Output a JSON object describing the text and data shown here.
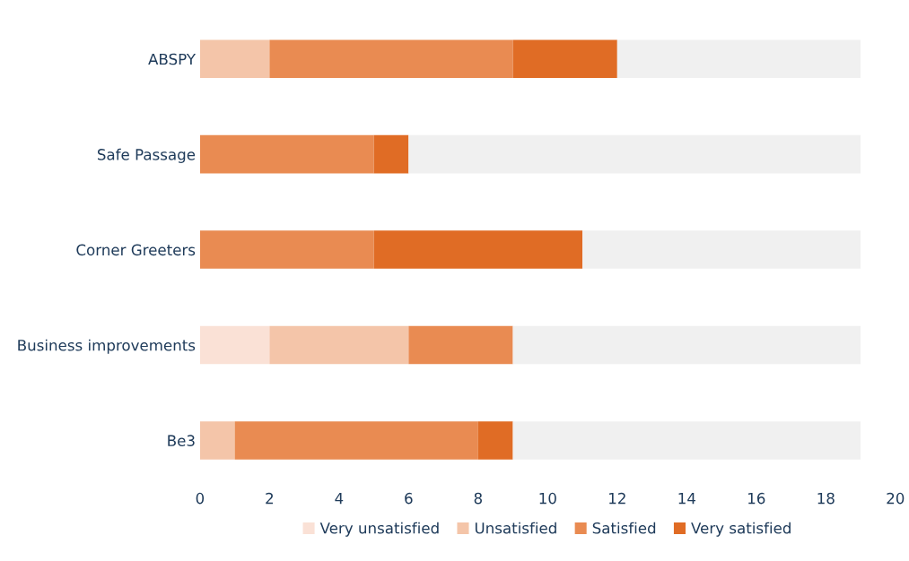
{
  "chart_data": {
    "type": "bar",
    "orientation": "horizontal",
    "stacked": true,
    "categories": [
      "ABSPY",
      "Safe Passage",
      "Corner Greeters",
      "Business improvements",
      "Be3"
    ],
    "series": [
      {
        "name": "Very unsatisfied",
        "color": "#fae1d6",
        "values": [
          0,
          0,
          0,
          2,
          0
        ]
      },
      {
        "name": "Unsatisfied",
        "color": "#f4c5a9",
        "values": [
          2,
          0,
          0,
          4,
          1
        ]
      },
      {
        "name": "Satisfied",
        "color": "#e98b52",
        "values": [
          7,
          5,
          5,
          3,
          7
        ]
      },
      {
        "name": "Very satisfied",
        "color": "#e06c25",
        "values": [
          3,
          1,
          6,
          0,
          1
        ]
      },
      {
        "color": "#f0f0f0",
        "values": [
          7,
          13,
          8,
          10,
          10
        ]
      }
    ],
    "xlim": [
      0,
      20
    ],
    "xticks": [
      0,
      2,
      4,
      6,
      8,
      10,
      12,
      14,
      16,
      18,
      20
    ],
    "grid": false,
    "legend": "bottom"
  }
}
